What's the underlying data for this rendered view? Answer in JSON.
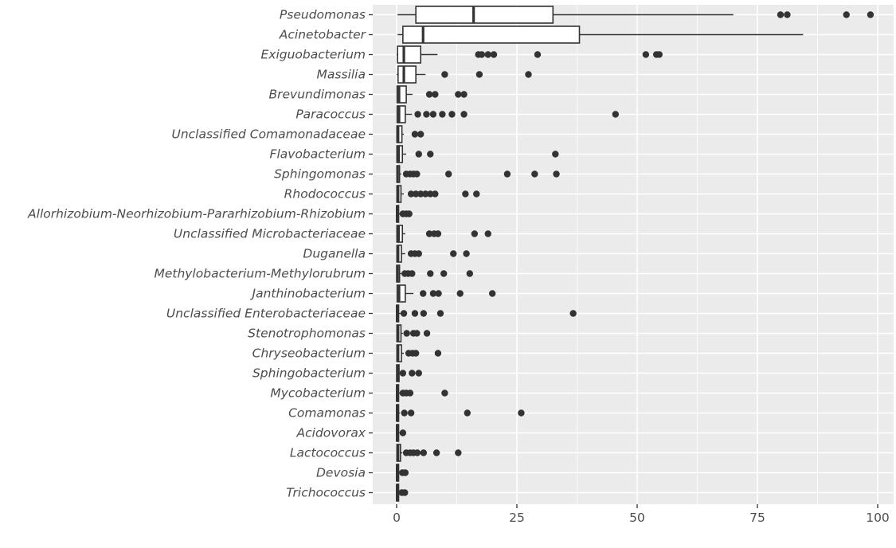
{
  "chart_data": {
    "type": "box",
    "orientation": "horizontal",
    "title": "",
    "xlabel": "",
    "ylabel": "",
    "xlim": [
      -5,
      102
    ],
    "x_ticks": [
      0,
      25,
      50,
      75,
      100
    ],
    "x_tick_labels": [
      "0",
      "25",
      "50",
      "75",
      "100"
    ],
    "grid": true,
    "legend": "none",
    "colors": {
      "panel": "#ebebeb",
      "grid": "#ffffff",
      "box_fill": "#ffffff",
      "box_line": "#333333",
      "outlier": "#333333",
      "text": "#4d4d4d"
    },
    "categories": [
      {
        "name": "Pseudomonas",
        "box": {
          "min": 0.2,
          "q1": 4,
          "median": 16,
          "q3": 32.5,
          "max": 70
        },
        "outliers": [
          79.8,
          81.2,
          93.5,
          98.5
        ]
      },
      {
        "name": "Acinetobacter",
        "box": {
          "min": 0.2,
          "q1": 1.3,
          "median": 5.5,
          "q3": 38,
          "max": 84.5
        },
        "outliers": []
      },
      {
        "name": "Exiguobacterium",
        "box": {
          "min": 0,
          "q1": 0.2,
          "median": 1.5,
          "q3": 5,
          "max": 8.5
        },
        "outliers": [
          17,
          17.7,
          19,
          20.2,
          29.3,
          51.8,
          54,
          54.6
        ]
      },
      {
        "name": "Massilia",
        "box": {
          "min": 0,
          "q1": 0.3,
          "median": 1.5,
          "q3": 4,
          "max": 6
        },
        "outliers": [
          10,
          17.2,
          27.4
        ]
      },
      {
        "name": "Brevundimonas",
        "box": {
          "min": 0,
          "q1": 0.1,
          "median": 0.5,
          "q3": 2,
          "max": 3.3
        },
        "outliers": [
          6.8,
          8,
          12.8,
          14
        ]
      },
      {
        "name": "Paracoccus",
        "box": {
          "min": 0,
          "q1": 0.1,
          "median": 0.5,
          "q3": 1.8,
          "max": 3.2
        },
        "outliers": [
          4.4,
          6.2,
          7.6,
          9.5,
          11.5,
          14,
          45.5
        ]
      },
      {
        "name": "Unclassified Comamonadaceae",
        "box": {
          "min": 0,
          "q1": 0.05,
          "median": 0.3,
          "q3": 1.1,
          "max": 1.5
        },
        "outliers": [
          3.8,
          5
        ]
      },
      {
        "name": "Flavobacterium",
        "box": {
          "min": 0,
          "q1": 0.05,
          "median": 0.4,
          "q3": 1.2,
          "max": 2
        },
        "outliers": [
          4.6,
          7,
          33
        ]
      },
      {
        "name": "Sphingomonas",
        "box": {
          "min": 0,
          "q1": 0.05,
          "median": 0.2,
          "q3": 0.6,
          "max": 1
        },
        "outliers": [
          2,
          2.8,
          3.5,
          4.2,
          10.8,
          23,
          28.7,
          33.2
        ]
      },
      {
        "name": "Rhodococcus",
        "box": {
          "min": 0,
          "q1": 0.05,
          "median": 0.3,
          "q3": 0.9,
          "max": 1.5
        },
        "outliers": [
          3,
          4,
          5,
          6,
          7,
          8,
          14.3,
          16.6
        ]
      },
      {
        "name": "Allorhizobium-Neorhizobium-Pararhizobium-Rhizobium",
        "box": {
          "min": 0,
          "q1": 0,
          "median": 0.1,
          "q3": 0.4,
          "max": 0.8
        },
        "outliers": [
          1.3,
          2,
          2.6
        ]
      },
      {
        "name": "Unclassified Microbacteriaceae",
        "box": {
          "min": 0,
          "q1": 0.05,
          "median": 0.4,
          "q3": 1.2,
          "max": 1.8
        },
        "outliers": [
          6.8,
          7.8,
          8.6,
          16.2,
          19
        ]
      },
      {
        "name": "Duganella",
        "box": {
          "min": 0,
          "q1": 0.05,
          "median": 0.3,
          "q3": 1,
          "max": 1.8
        },
        "outliers": [
          3,
          3.8,
          4.6,
          11.8,
          14.5
        ]
      },
      {
        "name": "Methylobacterium-Methylorubrum",
        "box": {
          "min": 0,
          "q1": 0,
          "median": 0.2,
          "q3": 0.6,
          "max": 1
        },
        "outliers": [
          1.7,
          2.4,
          3.2,
          7,
          9.8,
          15.2
        ]
      },
      {
        "name": "Janthinobacterium",
        "box": {
          "min": 0,
          "q1": 0.1,
          "median": 0.5,
          "q3": 1.8,
          "max": 3.5
        },
        "outliers": [
          5.5,
          7.6,
          8.7,
          13.2,
          19.9
        ]
      },
      {
        "name": "Unclassified Enterobacteriaceae",
        "box": {
          "min": 0,
          "q1": 0,
          "median": 0.1,
          "q3": 0.4,
          "max": 0.8
        },
        "outliers": [
          1.5,
          3.8,
          5.6,
          9.1,
          36.7
        ]
      },
      {
        "name": "Stenotrophomonas",
        "box": {
          "min": 0,
          "q1": 0.05,
          "median": 0.3,
          "q3": 0.9,
          "max": 1.3
        },
        "outliers": [
          2.1,
          3.5,
          4.2,
          6.3
        ]
      },
      {
        "name": "Chryseobacterium",
        "box": {
          "min": 0,
          "q1": 0.05,
          "median": 0.3,
          "q3": 1,
          "max": 1.5
        },
        "outliers": [
          2.5,
          3.3,
          4,
          8.6
        ]
      },
      {
        "name": "Sphingobacterium",
        "box": {
          "min": 0,
          "q1": 0,
          "median": 0.2,
          "q3": 0.5,
          "max": 0.9
        },
        "outliers": [
          1.3,
          3.2,
          4.6
        ]
      },
      {
        "name": "Mycobacterium",
        "box": {
          "min": 0,
          "q1": 0,
          "median": 0.1,
          "q3": 0.4,
          "max": 0.7
        },
        "outliers": [
          1.3,
          2,
          2.8,
          10
        ]
      },
      {
        "name": "Comamonas",
        "box": {
          "min": 0,
          "q1": 0,
          "median": 0.1,
          "q3": 0.4,
          "max": 0.7
        },
        "outliers": [
          1.6,
          3,
          14.7,
          25.9
        ]
      },
      {
        "name": "Acidovorax",
        "box": {
          "min": 0,
          "q1": 0,
          "median": 0.1,
          "q3": 0.3,
          "max": 0.6
        },
        "outliers": [
          1.3
        ]
      },
      {
        "name": "Lactococcus",
        "box": {
          "min": 0,
          "q1": 0.05,
          "median": 0.3,
          "q3": 0.8,
          "max": 1.2
        },
        "outliers": [
          2,
          2.8,
          3.5,
          4.3,
          5.6,
          8.3,
          12.8
        ]
      },
      {
        "name": "Devosia",
        "box": {
          "min": 0,
          "q1": 0,
          "median": 0.1,
          "q3": 0.3,
          "max": 0.5
        },
        "outliers": [
          1.2,
          1.8
        ]
      },
      {
        "name": "Trichococcus",
        "box": {
          "min": 0,
          "q1": 0,
          "median": 0.1,
          "q3": 0.3,
          "max": 0.5
        },
        "outliers": [
          1.1,
          1.7
        ]
      }
    ]
  }
}
